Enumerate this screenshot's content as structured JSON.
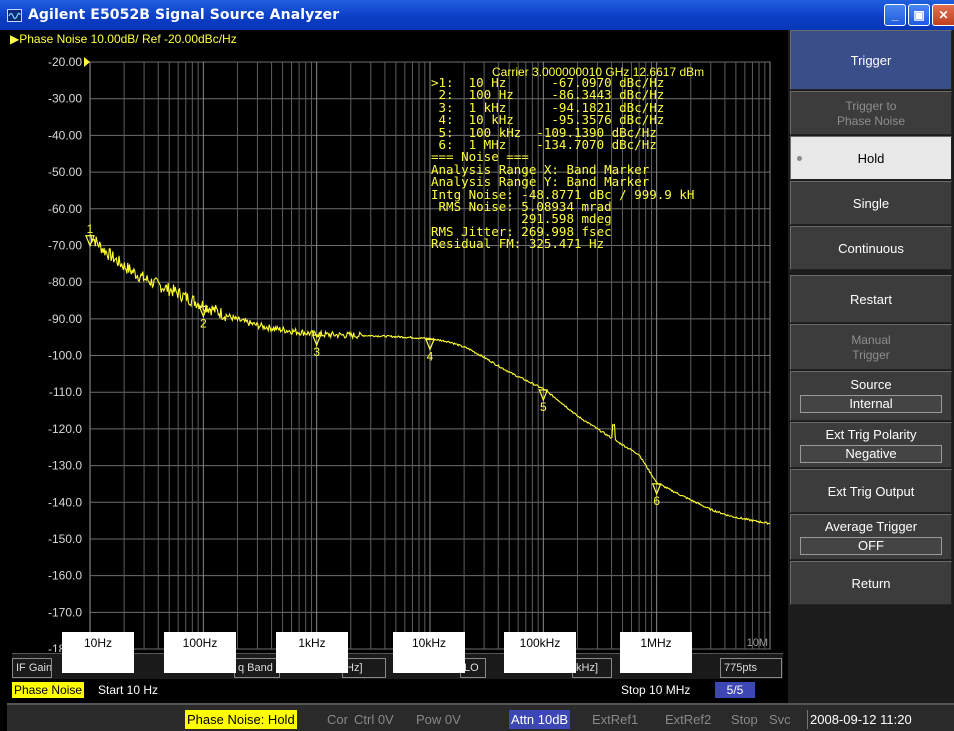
{
  "window": {
    "title": "Agilent E5052B Signal Source Analyzer",
    "min_label": "_",
    "max_label": "▣",
    "close_label": "✕"
  },
  "trace_header": {
    "title": "▶Phase Noise 10.00dB/ Ref -20.00dBc/Hz",
    "carrier": "Carrier 3.000000010 GHz    12.6617 dBm"
  },
  "readout": {
    "lines": [
      ">1:  10 Hz      -67.0970 dBc/Hz",
      " 2:  100 Hz     -86.3443 dBc/Hz",
      " 3:  1 kHz      -94.1821 dBc/Hz",
      " 4:  10 kHz     -95.3576 dBc/Hz",
      " 5:  100 kHz  -109.1390 dBc/Hz",
      " 6:  1 MHz    -134.7070 dBc/Hz",
      "=== Noise ===",
      "Analysis Range X: Band Marker",
      "Analysis Range Y: Band Marker",
      "Intg Noise: -48.8771 dBc / 999.9 kH",
      " RMS Noise: 5.08934 mrad",
      "            291.598 mdeg",
      "RMS Jitter: 269.998 fsec",
      "Residual FM: 325.471 Hz"
    ]
  },
  "chart_data": {
    "type": "line",
    "title": "Phase Noise 10.00dB/ Ref -20.00dBc/Hz",
    "xlabel": "",
    "ylabel": "",
    "x_scale": "log",
    "xlim": [
      10,
      10000000
    ],
    "ylim": [
      -180,
      -20
    ],
    "grid": true,
    "y_ticks": [
      "-20.00",
      "-30.00",
      "-40.00",
      "-50.00",
      "-60.00",
      "-70.00",
      "-80.00",
      "-90.00",
      "-100.0",
      "-110.0",
      "-120.0",
      "-130.0",
      "-140.0",
      "-150.0",
      "-160.0",
      "-170.0",
      "-180.0"
    ],
    "x_tick_labels": [
      "10Hz",
      "100Hz",
      "1kHz",
      "10kHz",
      "100kHz",
      "1MHz",
      "10M"
    ],
    "series": [
      {
        "color": "#ffff30",
        "x": [
          10,
          13,
          17,
          22,
          30,
          40,
          55,
          75,
          100,
          140,
          200,
          300,
          450,
          700,
          1000,
          1500,
          2200,
          3000,
          4500,
          7000,
          10000,
          15000,
          22000,
          30000,
          40000,
          55000,
          75000,
          100000,
          140000,
          200000,
          300000,
          450000,
          700000,
          1000000,
          1500000,
          2200000,
          3000000,
          4500000,
          7000000,
          10000000
        ],
        "y": [
          -67.1,
          -71,
          -74,
          -76.5,
          -79,
          -80.8,
          -82.5,
          -84.5,
          -86.3,
          -88.3,
          -90.3,
          -91.8,
          -92.8,
          -93.6,
          -94.2,
          -94.4,
          -94.5,
          -94.6,
          -94.8,
          -95.1,
          -95.4,
          -96.3,
          -98.2,
          -100.5,
          -102.8,
          -105.2,
          -107.2,
          -109.1,
          -112.5,
          -116.5,
          -120,
          -123.5,
          -127,
          -134.7,
          -137.5,
          -140,
          -142,
          -143.8,
          -145,
          -145.8
        ]
      }
    ],
    "markers": [
      {
        "label": "1",
        "x": 10,
        "y": -67.097
      },
      {
        "label": "2",
        "x": 100,
        "y": -86.3443
      },
      {
        "label": "3",
        "x": 1000,
        "y": -94.1821
      },
      {
        "label": "4",
        "x": 10000,
        "y": -95.3576
      },
      {
        "label": "5",
        "x": 100000,
        "y": -109.139
      },
      {
        "label": "6",
        "x": 1000000,
        "y": -134.707
      }
    ]
  },
  "freq_labels": [
    "10Hz",
    "100Hz",
    "1kHz",
    "10kHz",
    "100kHz",
    "1MHz"
  ],
  "infobar": {
    "cells": [
      "IF Gain",
      "q Band",
      "Hz]",
      "LO",
      "kHz]",
      "775pts"
    ]
  },
  "status": {
    "measurement": "Phase Noise",
    "start": "Start 10 Hz",
    "stop": "Stop 10 MHz",
    "page": "5/5"
  },
  "bottombar": {
    "items": [
      "Phase Noise: Hold",
      "Cor",
      "Ctrl 0V",
      "Pow 0V",
      "Attn 10dB",
      "ExtRef1",
      "ExtRef2",
      "Stop",
      "Svc",
      "2008-09-12 11:20"
    ],
    "colors": {
      "hold_bg": "#ffff00",
      "attn_bg": "#3c46b4",
      "dim": "#888888"
    }
  },
  "softkeys": {
    "header": "Trigger",
    "trigger_to_1": "Trigger to",
    "trigger_to_2": "Phase Noise",
    "hold": "Hold",
    "single": "Single",
    "continuous": "Continuous",
    "restart": "Restart",
    "manual_1": "Manual",
    "manual_2": "Trigger",
    "source": "Source",
    "source_value": "Internal",
    "ext_polarity": "Ext Trig Polarity",
    "ext_polarity_value": "Negative",
    "ext_output": "Ext Trig Output",
    "avg_trigger": "Average Trigger",
    "avg_trigger_value": "OFF",
    "return": "Return"
  }
}
